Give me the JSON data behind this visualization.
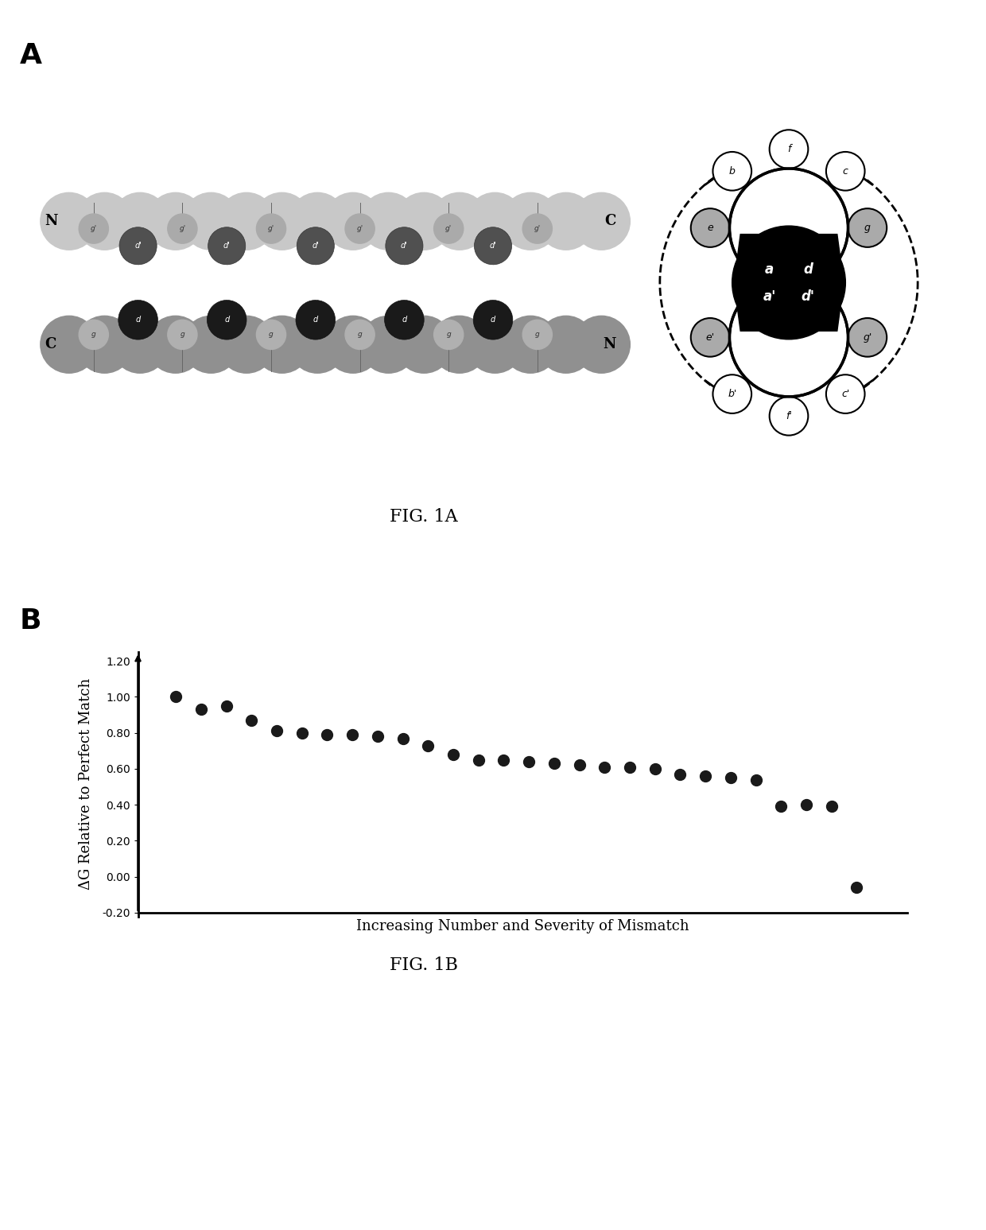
{
  "panel_A_label": "A",
  "panel_B_label": "B",
  "fig1A_caption": "FIG. 1A",
  "fig1B_caption": "FIG. 1B",
  "scatter_x": [
    1,
    2,
    3,
    4,
    5,
    6,
    7,
    8,
    9,
    10,
    11,
    12,
    13,
    14,
    15,
    16,
    17,
    18,
    19,
    20,
    21,
    22,
    23,
    24,
    25,
    26,
    27,
    28
  ],
  "scatter_y": [
    1.0,
    0.93,
    0.95,
    0.87,
    0.81,
    0.8,
    0.79,
    0.79,
    0.78,
    0.77,
    0.73,
    0.68,
    0.65,
    0.65,
    0.64,
    0.63,
    0.62,
    0.61,
    0.61,
    0.6,
    0.57,
    0.56,
    0.55,
    0.54,
    0.39,
    0.4,
    0.39,
    -0.06
  ],
  "ylabel": "ΔG Relative to Perfect Match",
  "xlabel": "Increasing Number and Severity of Mismatch",
  "ylim": [
    -0.2,
    1.2
  ],
  "yticks": [
    -0.2,
    0.0,
    0.2,
    0.4,
    0.6,
    0.8,
    1.0,
    1.2
  ],
  "ytick_labels": [
    "-0.20",
    "0.00",
    "0.20",
    "0.40",
    "0.60",
    "0.80",
    "1.00",
    "1.20"
  ],
  "dot_color": "#1a1a1a",
  "dot_size": 100,
  "background_color": "#ffffff"
}
